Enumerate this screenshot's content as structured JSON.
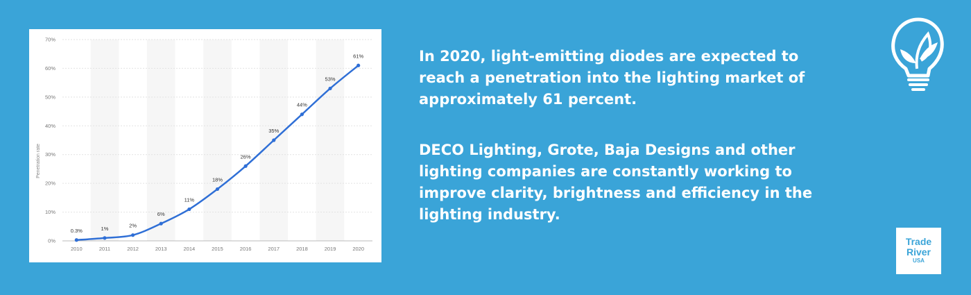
{
  "chart_data": {
    "type": "line",
    "title": "",
    "xlabel": "",
    "ylabel": "Penetration rate",
    "x": [
      "2010",
      "2011",
      "2012",
      "2013",
      "2014",
      "2015",
      "2016",
      "2017",
      "2018",
      "2019",
      "2020"
    ],
    "values": [
      0.3,
      1,
      2,
      6,
      11,
      18,
      26,
      35,
      44,
      53,
      61
    ],
    "data_labels": [
      "0.3%",
      "1%",
      "2%",
      "6%",
      "11%",
      "18%",
      "26%",
      "35%",
      "44%",
      "53%",
      "61%"
    ],
    "ylim": [
      0,
      70
    ],
    "yticks": [
      0,
      10,
      20,
      30,
      40,
      50,
      60,
      70
    ],
    "ytick_labels": [
      "0%",
      "10%",
      "20%",
      "30%",
      "40%",
      "50%",
      "60%",
      "70%"
    ],
    "grid": true,
    "alternating_column_shading": true,
    "line_color": "#2f6fd6"
  },
  "text": {
    "paragraph_1": "In 2020, light-emitting diodes are expected to reach a penetration into the lighting market of approximately 61 percent.",
    "paragraph_2": "DECO Lighting, Grote, Baja Designs and other lighting companies are constantly working to improve clarity, brightness and efficiency in the lighting industry."
  },
  "brand": {
    "line1": "Trade",
    "line2": "River",
    "line3": "USA"
  },
  "icons": {
    "logo": "lightbulb-leaf-icon"
  },
  "colors": {
    "background": "#3aa4d8",
    "card": "#ffffff",
    "text": "#ffffff"
  }
}
